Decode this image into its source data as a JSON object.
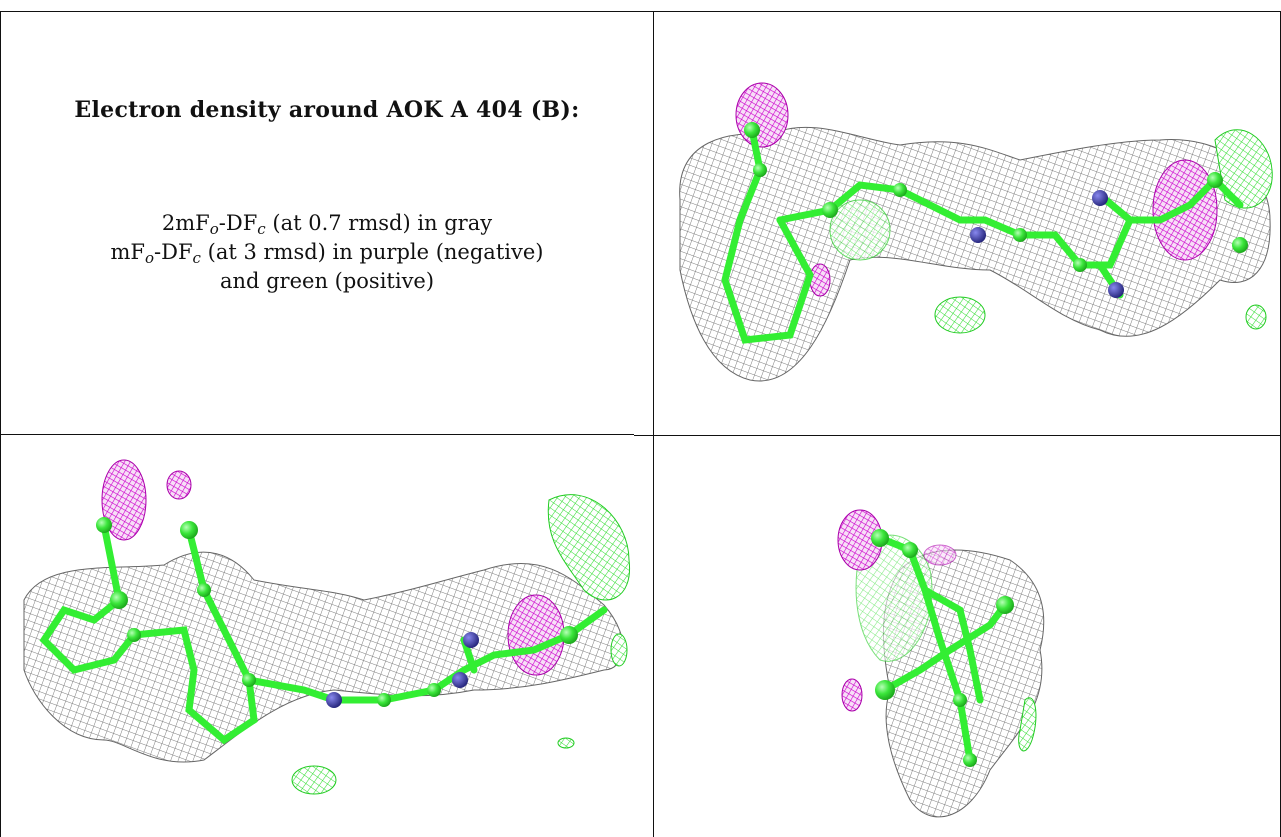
{
  "caption": {
    "title": "Electron density around AOK A 404 (B):",
    "line1": {
      "prefix": "2mF",
      "sub_o": "o",
      "mid": "-DF",
      "sub_c": "c",
      "suffix": " (at 0.7 rmsd) in gray"
    },
    "line2": {
      "prefix": "mF",
      "sub_o": "o",
      "mid": "-DF",
      "sub_c": "c",
      "suffix": " (at 3 rmsd) in purple (negative)"
    },
    "line3": "and green (positive)"
  },
  "colors": {
    "mesh_gray": "#8a8a8a",
    "negative_purple": "#cc00cc",
    "positive_green": "#33ee33",
    "nitrogen_blue": "#3333aa",
    "border": "#111111"
  }
}
